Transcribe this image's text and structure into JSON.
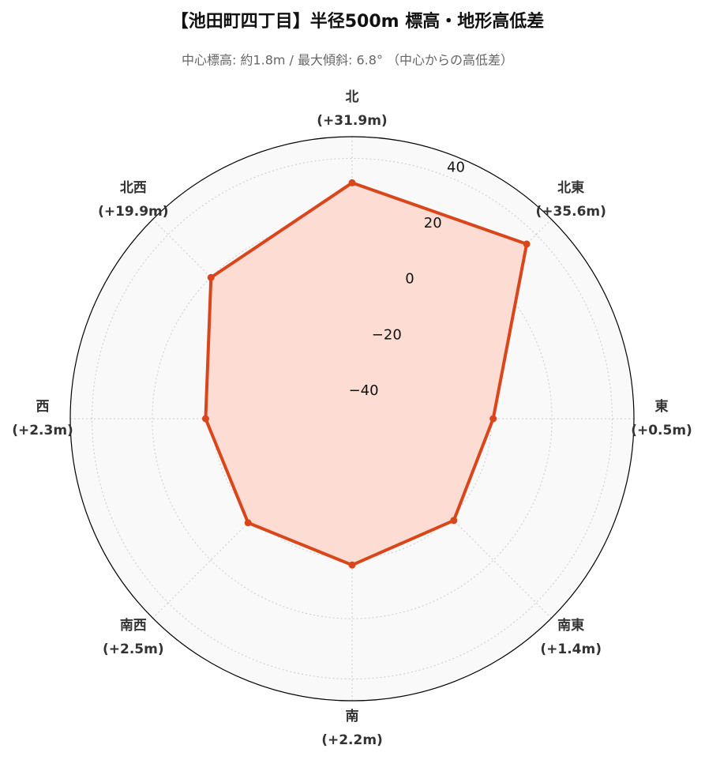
{
  "chart_data": {
    "type": "radar",
    "title": "【池田町四丁目】半径500m 標高・地形高低差",
    "subtitle": "中心標高: 約1.8m / 最大傾斜: 6.8° （中心からの高低差）",
    "categories": [
      "北",
      "北東",
      "東",
      "南東",
      "南",
      "南西",
      "西",
      "北西"
    ],
    "values": [
      31.9,
      35.6,
      0.5,
      1.4,
      2.2,
      2.5,
      2.3,
      19.9
    ],
    "value_labels": [
      "(+31.9m)",
      "(+35.6m)",
      "(+0.5m)",
      "(+1.4m)",
      "(+2.2m)",
      "(+2.5m)",
      "(+2.3m)",
      "(+19.9m)"
    ],
    "color": "#d9461c",
    "fill_color": "#fcdcd3",
    "reference_value": 0,
    "ylim": [
      -46.3,
      47.2
    ],
    "yticks": [
      {
        "value": -40,
        "label": "−40"
      },
      {
        "value": -20,
        "label": "−20"
      },
      0,
      20,
      40
    ],
    "grid": true
  }
}
